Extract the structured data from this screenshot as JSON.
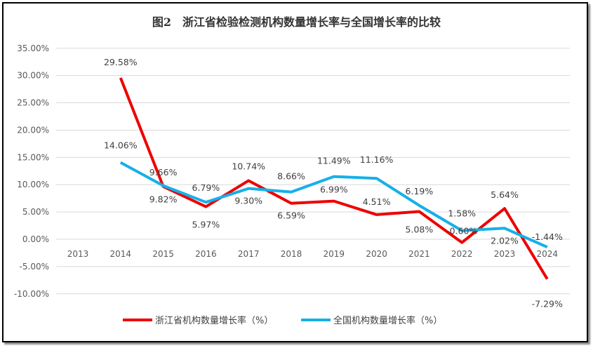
{
  "chart_data": {
    "type": "line",
    "title": "图2　浙江省检验检测机构数量增长率与全国增长率的比较",
    "categories": [
      "2013",
      "2014",
      "2015",
      "2016",
      "2017",
      "2018",
      "2019",
      "2020",
      "2021",
      "2022",
      "2023",
      "2024"
    ],
    "ylim": [
      -10,
      35
    ],
    "yticks": [
      "35.00%",
      "30.00%",
      "25.00%",
      "20.00%",
      "15.00%",
      "10.00%",
      "5.00%",
      "0.00%",
      "-5.00%",
      "-10.00%"
    ],
    "grid": true,
    "legend": "bottom",
    "series": [
      {
        "name": "浙江省机构数量增长率（%）",
        "color": "#ee0000",
        "values": [
          null,
          29.58,
          9.66,
          5.97,
          10.74,
          6.59,
          6.99,
          4.51,
          5.08,
          -0.6,
          5.64,
          -7.29
        ],
        "labels": [
          "",
          "29.58%",
          "9.66%",
          "5.97%",
          "10.74%",
          "6.59%",
          "6.99%",
          "4.51%",
          "5.08%",
          "-0.60%",
          "5.64%",
          "-7.29%"
        ]
      },
      {
        "name": "全国机构数量增长率（%）",
        "color": "#16b0e8",
        "values": [
          null,
          14.06,
          9.82,
          6.79,
          9.3,
          8.66,
          11.49,
          11.16,
          6.19,
          1.58,
          2.02,
          -1.44
        ],
        "labels": [
          "",
          "14.06%",
          "9.82%",
          "6.79%",
          "9.30%",
          "8.66%",
          "11.49%",
          "11.16%",
          "6.19%",
          "1.58%",
          "2.02%",
          "-1.44%"
        ]
      }
    ]
  }
}
